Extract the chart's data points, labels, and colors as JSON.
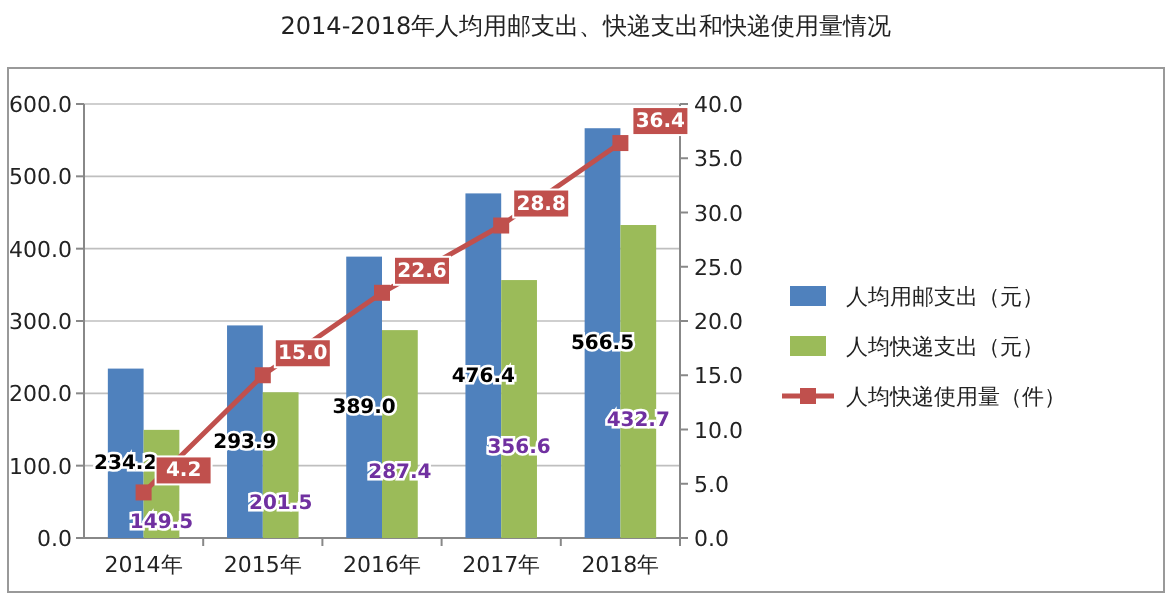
{
  "chart_data": {
    "type": "bar",
    "title": "2014-2018年人均用邮支出、快递支出和快递使用量情况",
    "categories": [
      "2014年",
      "2015年",
      "2016年",
      "2017年",
      "2018年"
    ],
    "series": [
      {
        "name": "人均用邮支出（元）",
        "color": "#4f81bd",
        "values": [
          234.2,
          293.9,
          389.0,
          476.4,
          566.5
        ],
        "value_labels": [
          "234.2",
          "293.9",
          "389.0",
          "476.4",
          "566.5"
        ]
      },
      {
        "name": "人均快递支出（元）",
        "color": "#9bbb59",
        "values": [
          149.5,
          201.5,
          287.4,
          356.6,
          432.7
        ],
        "value_labels": [
          "149.5",
          "201.5",
          "287.4",
          "356.6",
          "432.7"
        ]
      },
      {
        "name": "人均快递使用量（件）",
        "color": "#c0504d",
        "type": "line",
        "axis": "y2",
        "marker": "square",
        "values": [
          4.2,
          15.0,
          22.6,
          28.8,
          36.4
        ],
        "value_labels": [
          "4.2",
          "15.0",
          "22.6",
          "28.8",
          "36.4"
        ]
      }
    ],
    "ylim": [
      0,
      600
    ],
    "yticks": [
      {
        "value": 0,
        "label": "0.0"
      },
      {
        "value": 100,
        "label": "100.0"
      },
      {
        "value": 200,
        "label": "200.0"
      },
      {
        "value": 300,
        "label": "300.0"
      },
      {
        "value": 400,
        "label": "400.0"
      },
      {
        "value": 500,
        "label": "500.0"
      },
      {
        "value": 600,
        "label": "600.0"
      }
    ],
    "y2lim": [
      0,
      40
    ],
    "y2ticks": [
      {
        "value": 0,
        "label": "0.0"
      },
      {
        "value": 5,
        "label": "5.0"
      },
      {
        "value": 10,
        "label": "10.0"
      },
      {
        "value": 15,
        "label": "15.0"
      },
      {
        "value": 20,
        "label": "20.0"
      },
      {
        "value": 25,
        "label": "25.0"
      },
      {
        "value": 30,
        "label": "30.0"
      },
      {
        "value": 35,
        "label": "35.0"
      },
      {
        "value": 40,
        "label": "40.0"
      }
    ],
    "grid": "y",
    "legend": "right"
  }
}
